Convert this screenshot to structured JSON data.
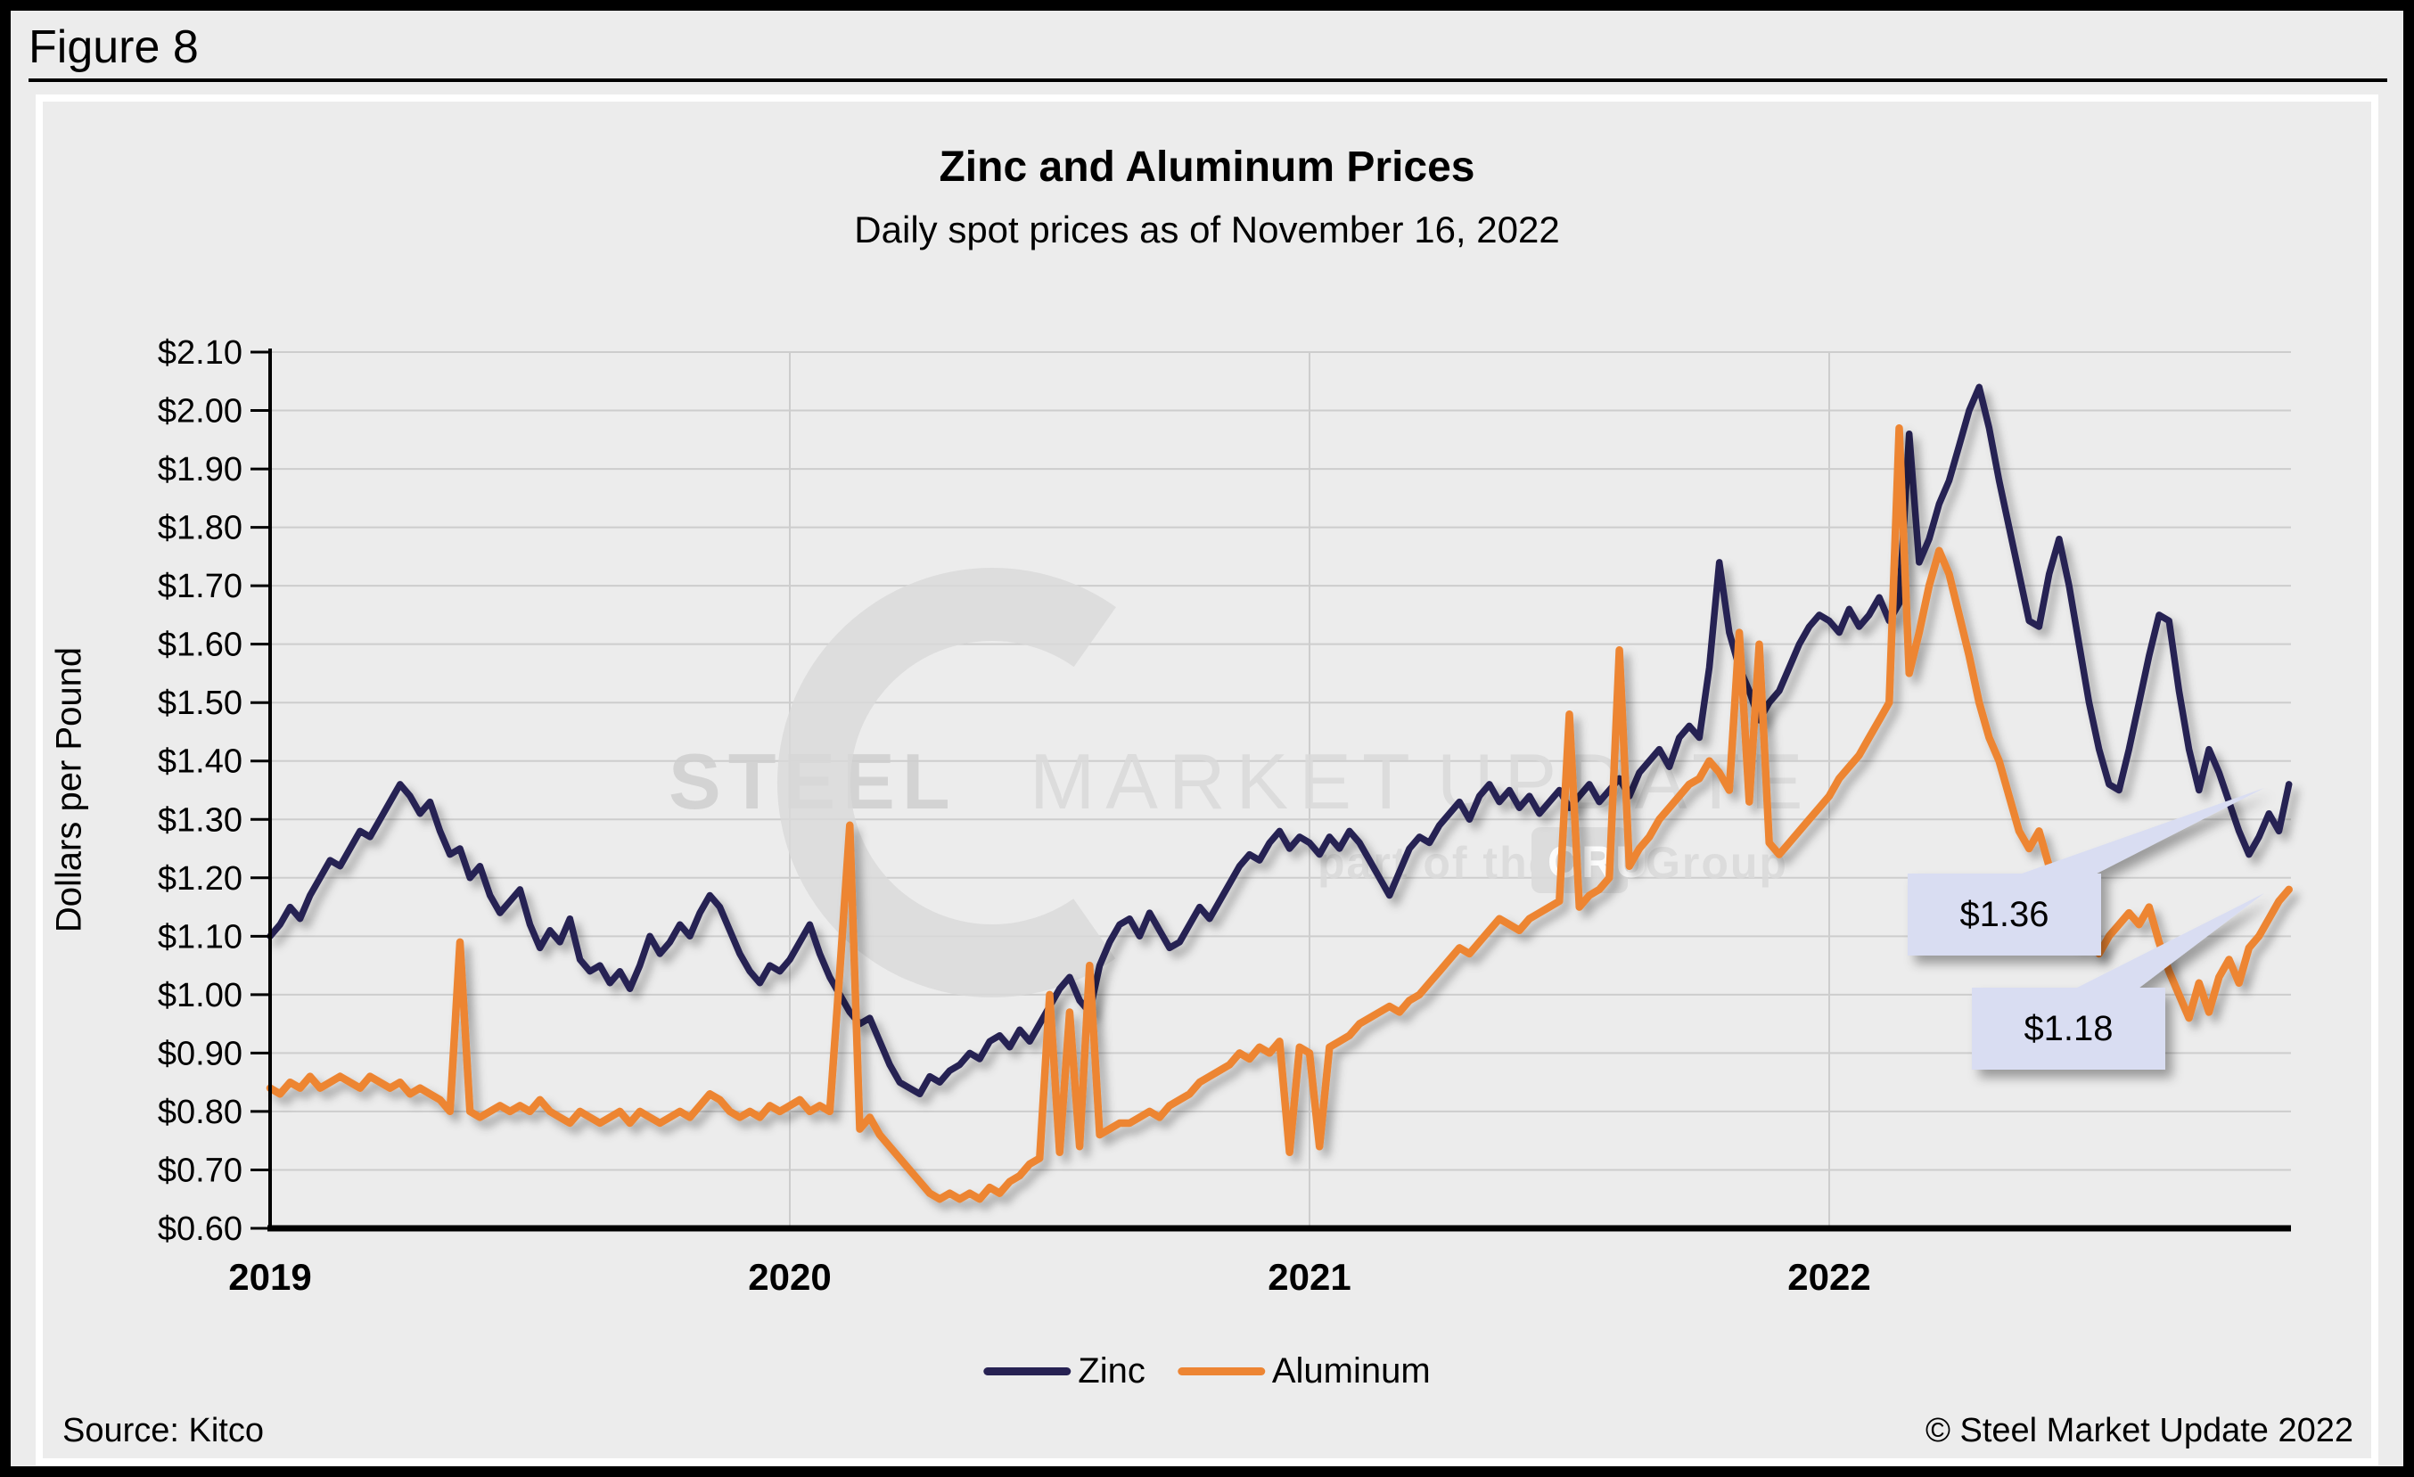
{
  "figure": {
    "label": "Figure 8"
  },
  "chart": {
    "title": "Zinc and Aluminum Prices",
    "subtitle": "Daily spot prices as of November 16, 2022",
    "y_axis_title": "Dollars per Pound",
    "y_tick_labels": [
      "$2.10",
      "$2.00",
      "$1.90",
      "$1.80",
      "$1.70",
      "$1.60",
      "$1.50",
      "$1.40",
      "$1.30",
      "$1.20",
      "$1.10",
      "$1.00",
      "$0.90",
      "$0.80",
      "$0.70",
      "$0.60"
    ],
    "x_tick_labels": [
      "2019",
      "2020",
      "2021",
      "2022"
    ],
    "legend": [
      {
        "label": "Zinc"
      },
      {
        "label": "Aluminum"
      }
    ],
    "callouts": [
      {
        "label": "$1.36",
        "series": "Zinc"
      },
      {
        "label": "$1.18",
        "series": "Aluminum"
      }
    ]
  },
  "watermark": {
    "word1": "STEEL",
    "word2": "MARKET",
    "word3": "UPDATE",
    "tagline_prefix": "part of the",
    "tagline_box": "CRU",
    "tagline_suffix": "Group"
  },
  "footer": {
    "source": "Source: Kitco",
    "copyright": "© Steel Market Update 2022"
  },
  "colors": {
    "background": "#ececec",
    "frame_border": "#ffffff",
    "gridline": "#cdcdcd",
    "axis": "#000000",
    "zinc": "#272253",
    "aluminum": "#ED8533",
    "callout_fill": "#d9ddf2",
    "watermark_dark": "#cfcfcf",
    "watermark_light": "#dadada"
  },
  "chart_data": {
    "type": "line",
    "title": "Zinc and Aluminum Prices",
    "subtitle": "Daily spot prices as of November 16, 2022",
    "xlabel": "",
    "ylabel": "Dollars per Pound",
    "ylim": [
      0.6,
      2.1
    ],
    "y_tick_step": 0.1,
    "x_tick_labels": [
      "2019",
      "2020",
      "2021",
      "2022"
    ],
    "x_start": 2019.0,
    "x_step_years": 0.01923,
    "x_end_label": "2022-11-16",
    "grid": "horizontal every $0.10 plus vertical at year starts",
    "legend_position": "bottom",
    "end_labels": {
      "Zinc": "$1.36",
      "Aluminum": "$1.18"
    },
    "series": [
      {
        "name": "Zinc",
        "color": "#272253",
        "values": [
          1.1,
          1.12,
          1.15,
          1.13,
          1.17,
          1.2,
          1.23,
          1.22,
          1.25,
          1.28,
          1.27,
          1.3,
          1.33,
          1.36,
          1.34,
          1.31,
          1.33,
          1.28,
          1.24,
          1.25,
          1.2,
          1.22,
          1.17,
          1.14,
          1.16,
          1.18,
          1.12,
          1.08,
          1.11,
          1.09,
          1.13,
          1.06,
          1.04,
          1.05,
          1.02,
          1.04,
          1.01,
          1.05,
          1.1,
          1.07,
          1.09,
          1.12,
          1.1,
          1.14,
          1.17,
          1.15,
          1.11,
          1.07,
          1.04,
          1.02,
          1.05,
          1.04,
          1.06,
          1.09,
          1.12,
          1.07,
          1.03,
          1.0,
          0.97,
          0.95,
          0.96,
          0.92,
          0.88,
          0.85,
          0.84,
          0.83,
          0.86,
          0.85,
          0.87,
          0.88,
          0.9,
          0.89,
          0.92,
          0.93,
          0.91,
          0.94,
          0.92,
          0.95,
          0.98,
          1.01,
          1.03,
          0.99,
          0.97,
          1.05,
          1.09,
          1.12,
          1.13,
          1.1,
          1.14,
          1.11,
          1.08,
          1.09,
          1.12,
          1.15,
          1.13,
          1.16,
          1.19,
          1.22,
          1.24,
          1.23,
          1.26,
          1.28,
          1.25,
          1.27,
          1.26,
          1.24,
          1.27,
          1.25,
          1.28,
          1.26,
          1.23,
          1.2,
          1.17,
          1.21,
          1.25,
          1.27,
          1.26,
          1.29,
          1.31,
          1.33,
          1.3,
          1.34,
          1.36,
          1.33,
          1.35,
          1.32,
          1.34,
          1.31,
          1.33,
          1.35,
          1.32,
          1.34,
          1.36,
          1.33,
          1.35,
          1.37,
          1.34,
          1.38,
          1.4,
          1.42,
          1.39,
          1.44,
          1.46,
          1.44,
          1.56,
          1.74,
          1.62,
          1.56,
          1.52,
          1.47,
          1.5,
          1.52,
          1.56,
          1.6,
          1.63,
          1.65,
          1.64,
          1.62,
          1.66,
          1.63,
          1.65,
          1.68,
          1.64,
          1.67,
          1.96,
          1.74,
          1.78,
          1.84,
          1.88,
          1.94,
          2.0,
          2.04,
          1.97,
          1.88,
          1.8,
          1.72,
          1.64,
          1.63,
          1.72,
          1.78,
          1.7,
          1.6,
          1.5,
          1.42,
          1.36,
          1.35,
          1.42,
          1.5,
          1.58,
          1.65,
          1.64,
          1.52,
          1.42,
          1.35,
          1.42,
          1.38,
          1.33,
          1.28,
          1.24,
          1.27,
          1.31,
          1.28,
          1.36
        ]
      },
      {
        "name": "Aluminum",
        "color": "#ED8533",
        "values": [
          0.84,
          0.83,
          0.85,
          0.84,
          0.86,
          0.84,
          0.85,
          0.86,
          0.85,
          0.84,
          0.86,
          0.85,
          0.84,
          0.85,
          0.83,
          0.84,
          0.83,
          0.82,
          0.8,
          1.09,
          0.8,
          0.79,
          0.8,
          0.81,
          0.8,
          0.81,
          0.8,
          0.82,
          0.8,
          0.79,
          0.78,
          0.8,
          0.79,
          0.78,
          0.79,
          0.8,
          0.78,
          0.8,
          0.79,
          0.78,
          0.79,
          0.8,
          0.79,
          0.81,
          0.83,
          0.82,
          0.8,
          0.79,
          0.8,
          0.79,
          0.81,
          0.8,
          0.81,
          0.82,
          0.8,
          0.81,
          0.8,
          1.04,
          1.29,
          0.77,
          0.79,
          0.76,
          0.74,
          0.72,
          0.7,
          0.68,
          0.66,
          0.65,
          0.66,
          0.65,
          0.66,
          0.65,
          0.67,
          0.66,
          0.68,
          0.69,
          0.71,
          0.72,
          1.0,
          0.73,
          0.97,
          0.74,
          1.05,
          0.76,
          0.77,
          0.78,
          0.78,
          0.79,
          0.8,
          0.79,
          0.81,
          0.82,
          0.83,
          0.85,
          0.86,
          0.87,
          0.88,
          0.9,
          0.89,
          0.91,
          0.9,
          0.92,
          0.73,
          0.91,
          0.9,
          0.74,
          0.91,
          0.92,
          0.93,
          0.95,
          0.96,
          0.97,
          0.98,
          0.97,
          0.99,
          1.0,
          1.02,
          1.04,
          1.06,
          1.08,
          1.07,
          1.09,
          1.11,
          1.13,
          1.12,
          1.11,
          1.13,
          1.14,
          1.15,
          1.16,
          1.48,
          1.15,
          1.17,
          1.18,
          1.2,
          1.59,
          1.22,
          1.25,
          1.27,
          1.3,
          1.32,
          1.34,
          1.36,
          1.37,
          1.4,
          1.38,
          1.35,
          1.62,
          1.33,
          1.6,
          1.26,
          1.24,
          1.26,
          1.28,
          1.3,
          1.32,
          1.34,
          1.37,
          1.39,
          1.41,
          1.44,
          1.47,
          1.5,
          1.97,
          1.55,
          1.62,
          1.7,
          1.76,
          1.72,
          1.65,
          1.58,
          1.5,
          1.44,
          1.4,
          1.34,
          1.28,
          1.25,
          1.28,
          1.22,
          1.17,
          1.13,
          1.09,
          1.11,
          1.07,
          1.1,
          1.12,
          1.14,
          1.12,
          1.15,
          1.09,
          1.04,
          1.0,
          0.96,
          1.02,
          0.97,
          1.03,
          1.06,
          1.02,
          1.08,
          1.1,
          1.13,
          1.16,
          1.18
        ]
      }
    ]
  }
}
